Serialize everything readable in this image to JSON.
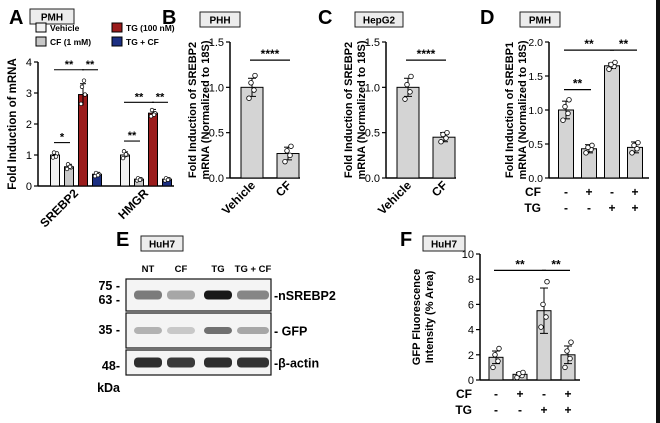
{
  "colors": {
    "vehicle": "#f2f2f2",
    "cf": "#c8c8c8",
    "tg": "#9b1c1c",
    "tg_cf": "#1c2f82",
    "single_bar": "#d4d4d4",
    "dot": "#ffffff"
  },
  "chart_data": [
    {
      "panel": "A",
      "type": "bar",
      "tag": "PMH",
      "ylabel": "Fold Induction of mRNA",
      "ylim": [
        0,
        4
      ],
      "yticks": [
        "0",
        "1",
        "2",
        "3",
        "4"
      ],
      "categories": [
        "SREBP2",
        "HMGR"
      ],
      "series": [
        {
          "name": "Vehicle",
          "values": [
            1.0,
            1.0
          ],
          "errors": [
            0.08,
            0.1
          ],
          "points": [
            [
              0.92,
              1.05,
              1.08,
              0.95
            ],
            [
              0.9,
              1.0,
              1.12,
              1.02
            ]
          ]
        },
        {
          "name": "CF (1 mM)",
          "values": [
            0.62,
            0.22
          ],
          "errors": [
            0.08,
            0.04
          ],
          "points": [
            [
              0.55,
              0.6,
              0.7,
              0.62
            ],
            [
              0.18,
              0.22,
              0.25,
              0.2
            ]
          ]
        },
        {
          "name": "TG (100 nM)",
          "values": [
            2.95,
            2.35
          ],
          "errors": [
            0.35,
            0.12
          ],
          "points": [
            [
              2.65,
              2.95,
              3.2,
              3.4
            ],
            [
              2.25,
              2.35,
              2.45,
              2.3
            ]
          ]
        },
        {
          "name": "TG + CF",
          "values": [
            0.38,
            0.22
          ],
          "errors": [
            0.06,
            0.04
          ],
          "points": [
            [
              0.32,
              0.38,
              0.42,
              0.35
            ],
            [
              0.18,
              0.22,
              0.25,
              0.2
            ]
          ]
        }
      ],
      "significance": [
        {
          "label": "*",
          "cat": 0,
          "from": 0,
          "to": 1,
          "y": 1.4
        },
        {
          "label": "**",
          "cat": 0,
          "from": 0,
          "to": 2,
          "y": 3.75
        },
        {
          "label": "**",
          "cat": 0,
          "from": 2,
          "to": 3,
          "y": 3.75
        },
        {
          "label": "**",
          "cat": 1,
          "from": 0,
          "to": 1,
          "y": 1.45
        },
        {
          "label": "**",
          "cat": 1,
          "from": 0,
          "to": 2,
          "y": 2.7
        },
        {
          "label": "**",
          "cat": 1,
          "from": 2,
          "to": 3,
          "y": 2.7
        }
      ]
    },
    {
      "panel": "B",
      "type": "bar",
      "tag": "PHH",
      "ylabel": "Fold Induction of SREBP2 mRNA (Normalized to 18S)",
      "ylim": [
        0,
        1.5
      ],
      "yticks": [
        "0.0",
        "0.5",
        "1.0",
        "1.5"
      ],
      "categories": [
        "Vehicle",
        "CF"
      ],
      "values": [
        1.0,
        0.27
      ],
      "errors": [
        0.1,
        0.07
      ],
      "points": [
        [
          0.88,
          0.97,
          1.05,
          1.13
        ],
        [
          0.18,
          0.25,
          0.3,
          0.35
        ]
      ],
      "significance": [
        {
          "label": "****",
          "from": 0,
          "to": 1,
          "y": 1.3
        }
      ]
    },
    {
      "panel": "C",
      "type": "bar",
      "tag": "HepG2",
      "ylabel": "Fold Induction of SREBP2 mRNA (Normalized to 18S)",
      "ylim": [
        0,
        1.5
      ],
      "yticks": [
        "0.0",
        "0.5",
        "1.0",
        "1.5"
      ],
      "categories": [
        "Vehicle",
        "CF"
      ],
      "values": [
        1.0,
        0.45
      ],
      "errors": [
        0.1,
        0.05
      ],
      "points": [
        [
          0.87,
          0.95,
          1.03,
          1.12
        ],
        [
          0.4,
          0.44,
          0.48,
          0.5
        ]
      ],
      "significance": [
        {
          "label": "****",
          "from": 0,
          "to": 1,
          "y": 1.3
        }
      ]
    },
    {
      "panel": "D",
      "type": "bar",
      "tag": "PMH",
      "ylabel": "Fold Induction of SREBP1 mRNA (Normalized to 18S)",
      "ylim": [
        0,
        2.0
      ],
      "yticks": [
        "0.0",
        "0.5",
        "1.0",
        "1.5",
        "2.0"
      ],
      "categories": [
        "Vehicle",
        "CF",
        "TG",
        "TG + CF"
      ],
      "values": [
        1.0,
        0.43,
        1.65,
        0.45
      ],
      "errors": [
        0.13,
        0.06,
        0.04,
        0.08
      ],
      "points": [
        [
          0.85,
          0.95,
          1.05,
          1.15
        ],
        [
          0.37,
          0.42,
          0.45,
          0.48
        ],
        [
          1.6,
          1.64,
          1.67,
          1.7
        ],
        [
          0.37,
          0.43,
          0.48,
          0.52
        ]
      ],
      "significance": [
        {
          "label": "**",
          "from": 0,
          "to": 1,
          "y": 1.3
        },
        {
          "label": "**",
          "from": 0,
          "to": 2,
          "y": 1.88
        },
        {
          "label": "**",
          "from": 2,
          "to": 3,
          "y": 1.88
        }
      ],
      "row_labels": [
        "CF",
        "TG"
      ],
      "rows": [
        [
          "-",
          "+",
          "-",
          "+"
        ],
        [
          "-",
          "-",
          "+",
          "+"
        ]
      ]
    },
    {
      "panel": "F",
      "type": "bar",
      "tag": "HuH7",
      "ylabel": "GFP Fluorescence Intensity (% Area)",
      "ylim": [
        0,
        10
      ],
      "yticks": [
        "0",
        "2",
        "4",
        "6",
        "8",
        "10"
      ],
      "categories": [
        "Vehicle",
        "CF",
        "TG",
        "TG + CF"
      ],
      "values": [
        1.8,
        0.45,
        5.5,
        2.0
      ],
      "errors": [
        0.5,
        0.15,
        1.8,
        0.7
      ],
      "points": [
        [
          1.0,
          1.5,
          2.0,
          2.5
        ],
        [
          0.2,
          0.35,
          0.5,
          0.6
        ],
        [
          4.2,
          5.0,
          6.0,
          7.8
        ],
        [
          1.0,
          1.7,
          2.3,
          3.0
        ]
      ],
      "significance": [
        {
          "label": "**",
          "from": 0,
          "to": 2,
          "y": 8.7
        },
        {
          "label": "**",
          "from": 2,
          "to": 3,
          "y": 8.7
        }
      ],
      "row_labels": [
        "CF",
        "TG"
      ],
      "rows": [
        [
          "-",
          "+",
          "-",
          "+"
        ],
        [
          "-",
          "-",
          "+",
          "+"
        ]
      ]
    }
  ],
  "panels": {
    "A": "A",
    "B": "B",
    "C": "C",
    "D": "D",
    "E": "E",
    "F": "F"
  },
  "legend_a": [
    "Vehicle",
    "CF (1 mM)",
    "TG (100 nM)",
    "TG + CF"
  ],
  "blot": {
    "tag": "HuH7",
    "lanes": [
      "NT",
      "CF",
      "TG",
      "TG + CF"
    ],
    "kda": [
      "75 -",
      "63 -",
      "35 -",
      "48-",
      "kDa"
    ],
    "bands": [
      "-nSREBP2",
      "- GFP",
      "-β-actin"
    ],
    "intensity": {
      "nsrebp2": [
        0.55,
        0.35,
        1.0,
        0.5
      ],
      "gfp": [
        0.3,
        0.2,
        0.6,
        0.35
      ],
      "actin": [
        0.9,
        0.85,
        0.9,
        0.88
      ]
    }
  }
}
